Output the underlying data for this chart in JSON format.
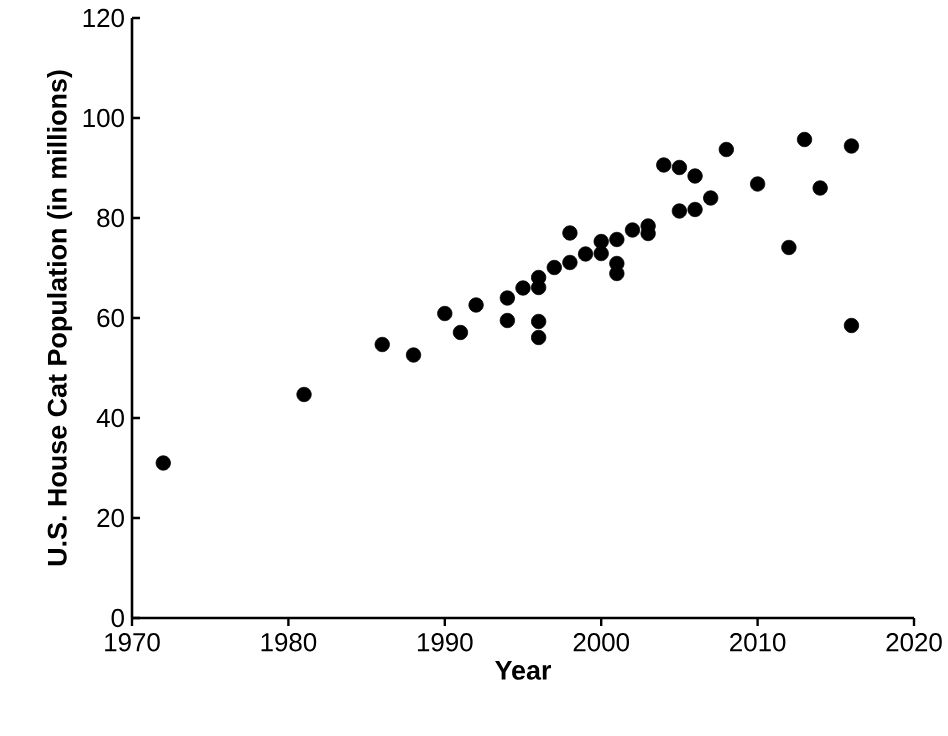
{
  "chart_data": {
    "type": "scatter",
    "xlabel": "Year",
    "ylabel": "U.S. House Cat Population (in millions)",
    "x": [
      1972,
      1981,
      1986,
      1988,
      1990,
      1991,
      1992,
      1994,
      1994,
      1995,
      1996,
      1996,
      1996,
      1996,
      1997,
      1998,
      1998,
      1999,
      2000,
      2000,
      2001,
      2001,
      2001,
      2002,
      2003,
      2003,
      2004,
      2005,
      2005,
      2006,
      2006,
      2007,
      2008,
      2010,
      2012,
      2013,
      2014,
      2016,
      2016
    ],
    "values": [
      31,
      44.7,
      54.7,
      52.6,
      60.9,
      57.1,
      62.6,
      64,
      59.5,
      66,
      68.1,
      66.1,
      59.3,
      56.1,
      70.1,
      77,
      71.1,
      72.8,
      75.3,
      72.9,
      75.7,
      70.9,
      68.9,
      77.6,
      78.4,
      76.9,
      90.6,
      90.1,
      81.4,
      88.4,
      81.7,
      84,
      93.7,
      86.8,
      74.1,
      95.7,
      86,
      94.4,
      58.5
    ],
    "color": "#000000",
    "marker": "circle",
    "xlim": [
      1970,
      2020
    ],
    "ylim": [
      0,
      120
    ],
    "xticks": [
      1970,
      1980,
      1990,
      2000,
      2010,
      2020
    ],
    "yticks": [
      0,
      20,
      40,
      60,
      80,
      100,
      120
    ],
    "grid": false
  }
}
